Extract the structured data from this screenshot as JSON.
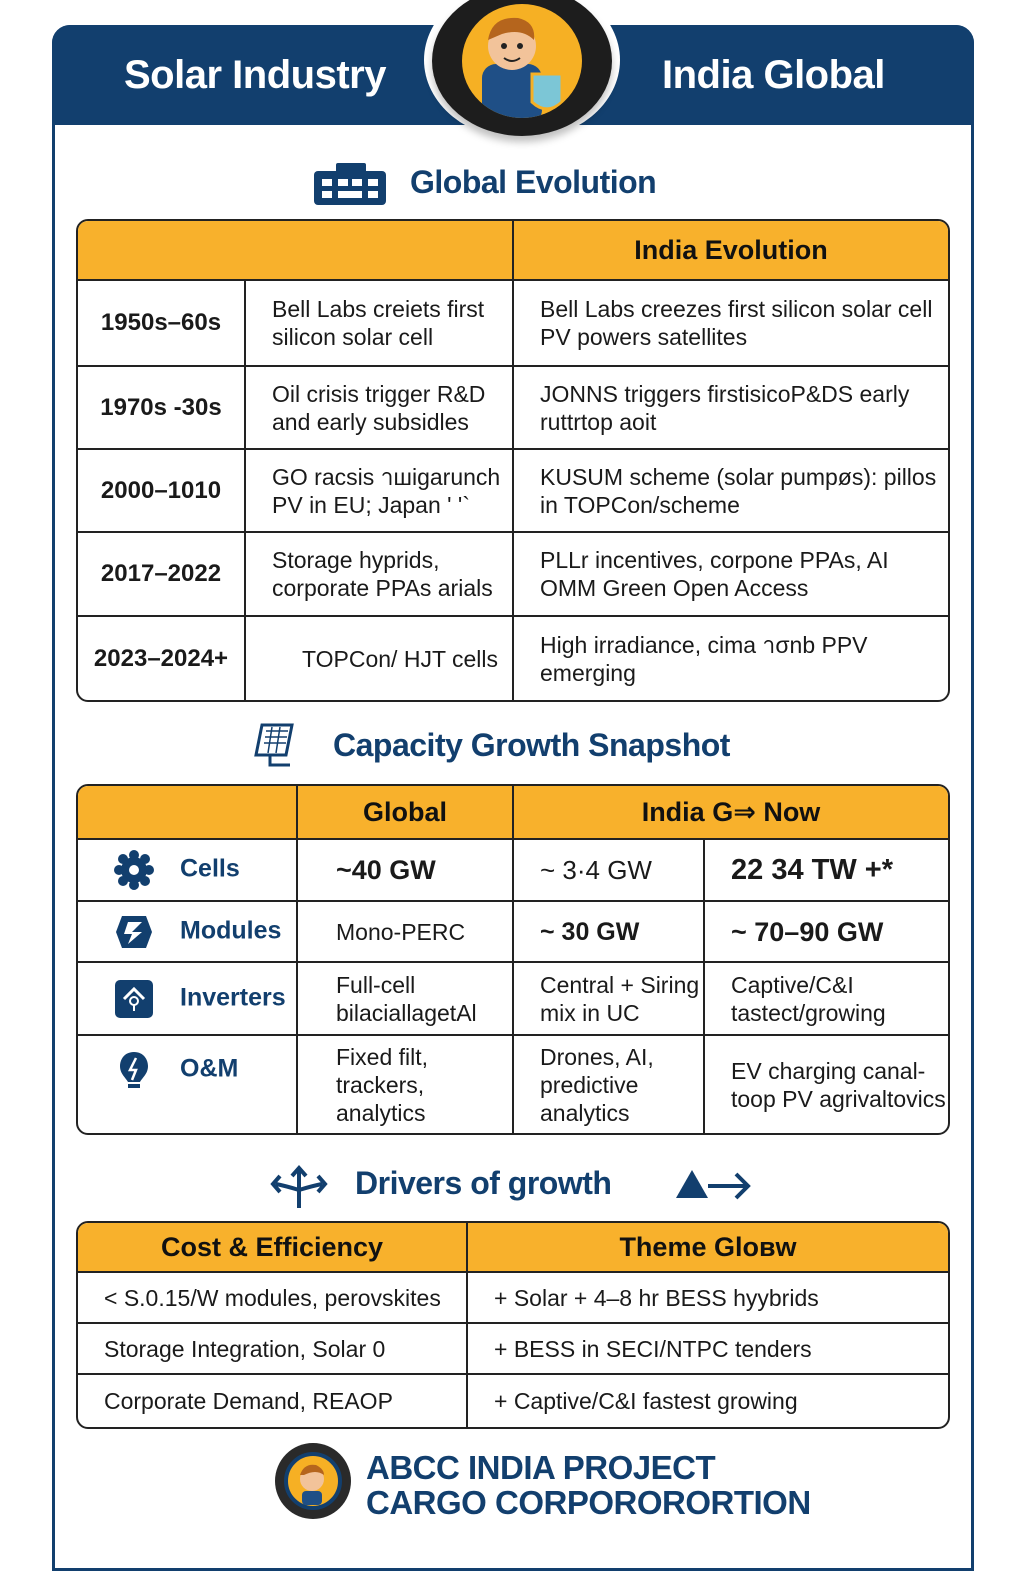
{
  "header": {
    "left_title": "Solar Industry",
    "right_title": "India Global",
    "mascot_icon": "mascot-tire-badge-icon"
  },
  "colors": {
    "navy": "#123f6e",
    "orange": "#f8b12c"
  },
  "evolution": {
    "title": "Global Evolution",
    "icon": "building-grid-icon",
    "header": {
      "india": "India Evolution"
    },
    "rows": [
      {
        "period": "1950s–60s",
        "global": "Bell Labs creiets first silicon solar cell",
        "india": "Bell Labs creezes first silicon solar cell PV powers satellites"
      },
      {
        "period": "1970s -30s",
        "global": "Oil crisis trigger R&D and early subsidles",
        "india": "JONNS triggers firstisicoP&DS early ruttrtop aoit"
      },
      {
        "period": "2000–1010",
        "global": "GO racsis าшigarunch PV in EU; Japan ' '`",
        "india": "KUSUM scheme (solar pumpøs): pillos in TOPCon/scheme"
      },
      {
        "period": "2017–2022",
        "global": "Storage hyprids, corporate PPAs arials",
        "india": "PLLr incentives, corpone PPAs, AI OMM Green Open Access"
      },
      {
        "period": "2023–2024+",
        "global": "TOPCon/ HJT cells",
        "india": "High irradiance, cima าσnb PPV emerging"
      }
    ]
  },
  "capacity": {
    "title": "Capacity Growth Snapshot",
    "icon": "solar-panel-icon",
    "header": {
      "global": "Global",
      "india": "India G⇒ Now"
    },
    "rows": [
      {
        "label": "Cells",
        "icon": "gear-icon",
        "global": "~40 GW",
        "india": "~ 3·4 GW",
        "now": "22 34 TW +*"
      },
      {
        "label": "Modules",
        "icon": "lightning-badge-icon",
        "global": "Mono-PERC",
        "india": "~ 30 GW",
        "now": "~ 70–90 GW"
      },
      {
        "label": "Inverters",
        "icon": "inverter-house-icon",
        "global": "Full-cell bilaciallagetAl",
        "india": "Central + Siring mix in UC",
        "now": "Captive/C&I tastect/growing"
      },
      {
        "label": "O&M",
        "icon": "bulb-bolt-icon",
        "global": "Fixed filt, trackers, analytics",
        "india": "Drones, AI, predictive analytics",
        "now": "EV charging canal-toop PV agrivaltovics"
      }
    ]
  },
  "drivers": {
    "title": "Drivers of growth",
    "icon_left": "split-arrows-icon",
    "icon_right": "triangle-arrow-icon",
    "header": {
      "left": "Cost & Efficiency",
      "right": "Theme Gloʙw"
    },
    "rows": [
      {
        "left": "< S.0.15/W modules, perovskites",
        "right": "+ Solar + 4–8 hr BESS hyybrids"
      },
      {
        "left": "Storage Integration, Solar 0",
        "right": "+ BESS in SECI/NTPC tenders"
      },
      {
        "left": "Corporate Demand, REAOP",
        "right": "+ Captive/C&I fastest growing"
      }
    ]
  },
  "footer": {
    "line1": "ABCC INDIA PROJECT",
    "line2": "CARGO CORPORORORTION",
    "logo_icon": "mascot-logo-icon"
  }
}
